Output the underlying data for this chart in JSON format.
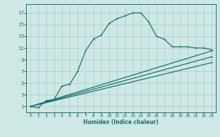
{
  "xlabel": "Humidex (Indice chaleur)",
  "bg_color": "#cde8e5",
  "line_color": "#1a6e6e",
  "grid_color": "#aed0ce",
  "xlim": [
    -0.5,
    23.5
  ],
  "ylim": [
    0,
    18.5
  ],
  "xticks": [
    0,
    1,
    2,
    3,
    4,
    5,
    6,
    7,
    8,
    9,
    10,
    11,
    12,
    13,
    14,
    15,
    16,
    17,
    18,
    19,
    20,
    21,
    22,
    23
  ],
  "yticks": [
    1,
    3,
    5,
    7,
    9,
    11,
    13,
    15,
    17
  ],
  "line1_x": [
    0,
    1,
    2,
    3,
    4,
    5,
    6,
    7,
    8,
    9,
    10,
    11,
    12,
    13,
    14,
    15,
    16,
    17,
    18,
    19,
    20,
    21,
    22,
    23
  ],
  "line1_y": [
    1,
    0.8,
    2.0,
    2.2,
    4.5,
    4.8,
    7.0,
    10.5,
    12.5,
    13.2,
    15.2,
    16.0,
    16.5,
    17.0,
    17.0,
    15.5,
    13.0,
    12.5,
    11.2,
    11.2,
    11.2,
    11.0,
    11.0,
    10.7
  ],
  "line2_x": [
    0,
    23
  ],
  "line2_y": [
    1,
    10.5
  ],
  "line3_x": [
    0,
    23
  ],
  "line3_y": [
    1,
    9.5
  ],
  "line4_x": [
    0,
    23
  ],
  "line4_y": [
    1,
    8.5
  ]
}
